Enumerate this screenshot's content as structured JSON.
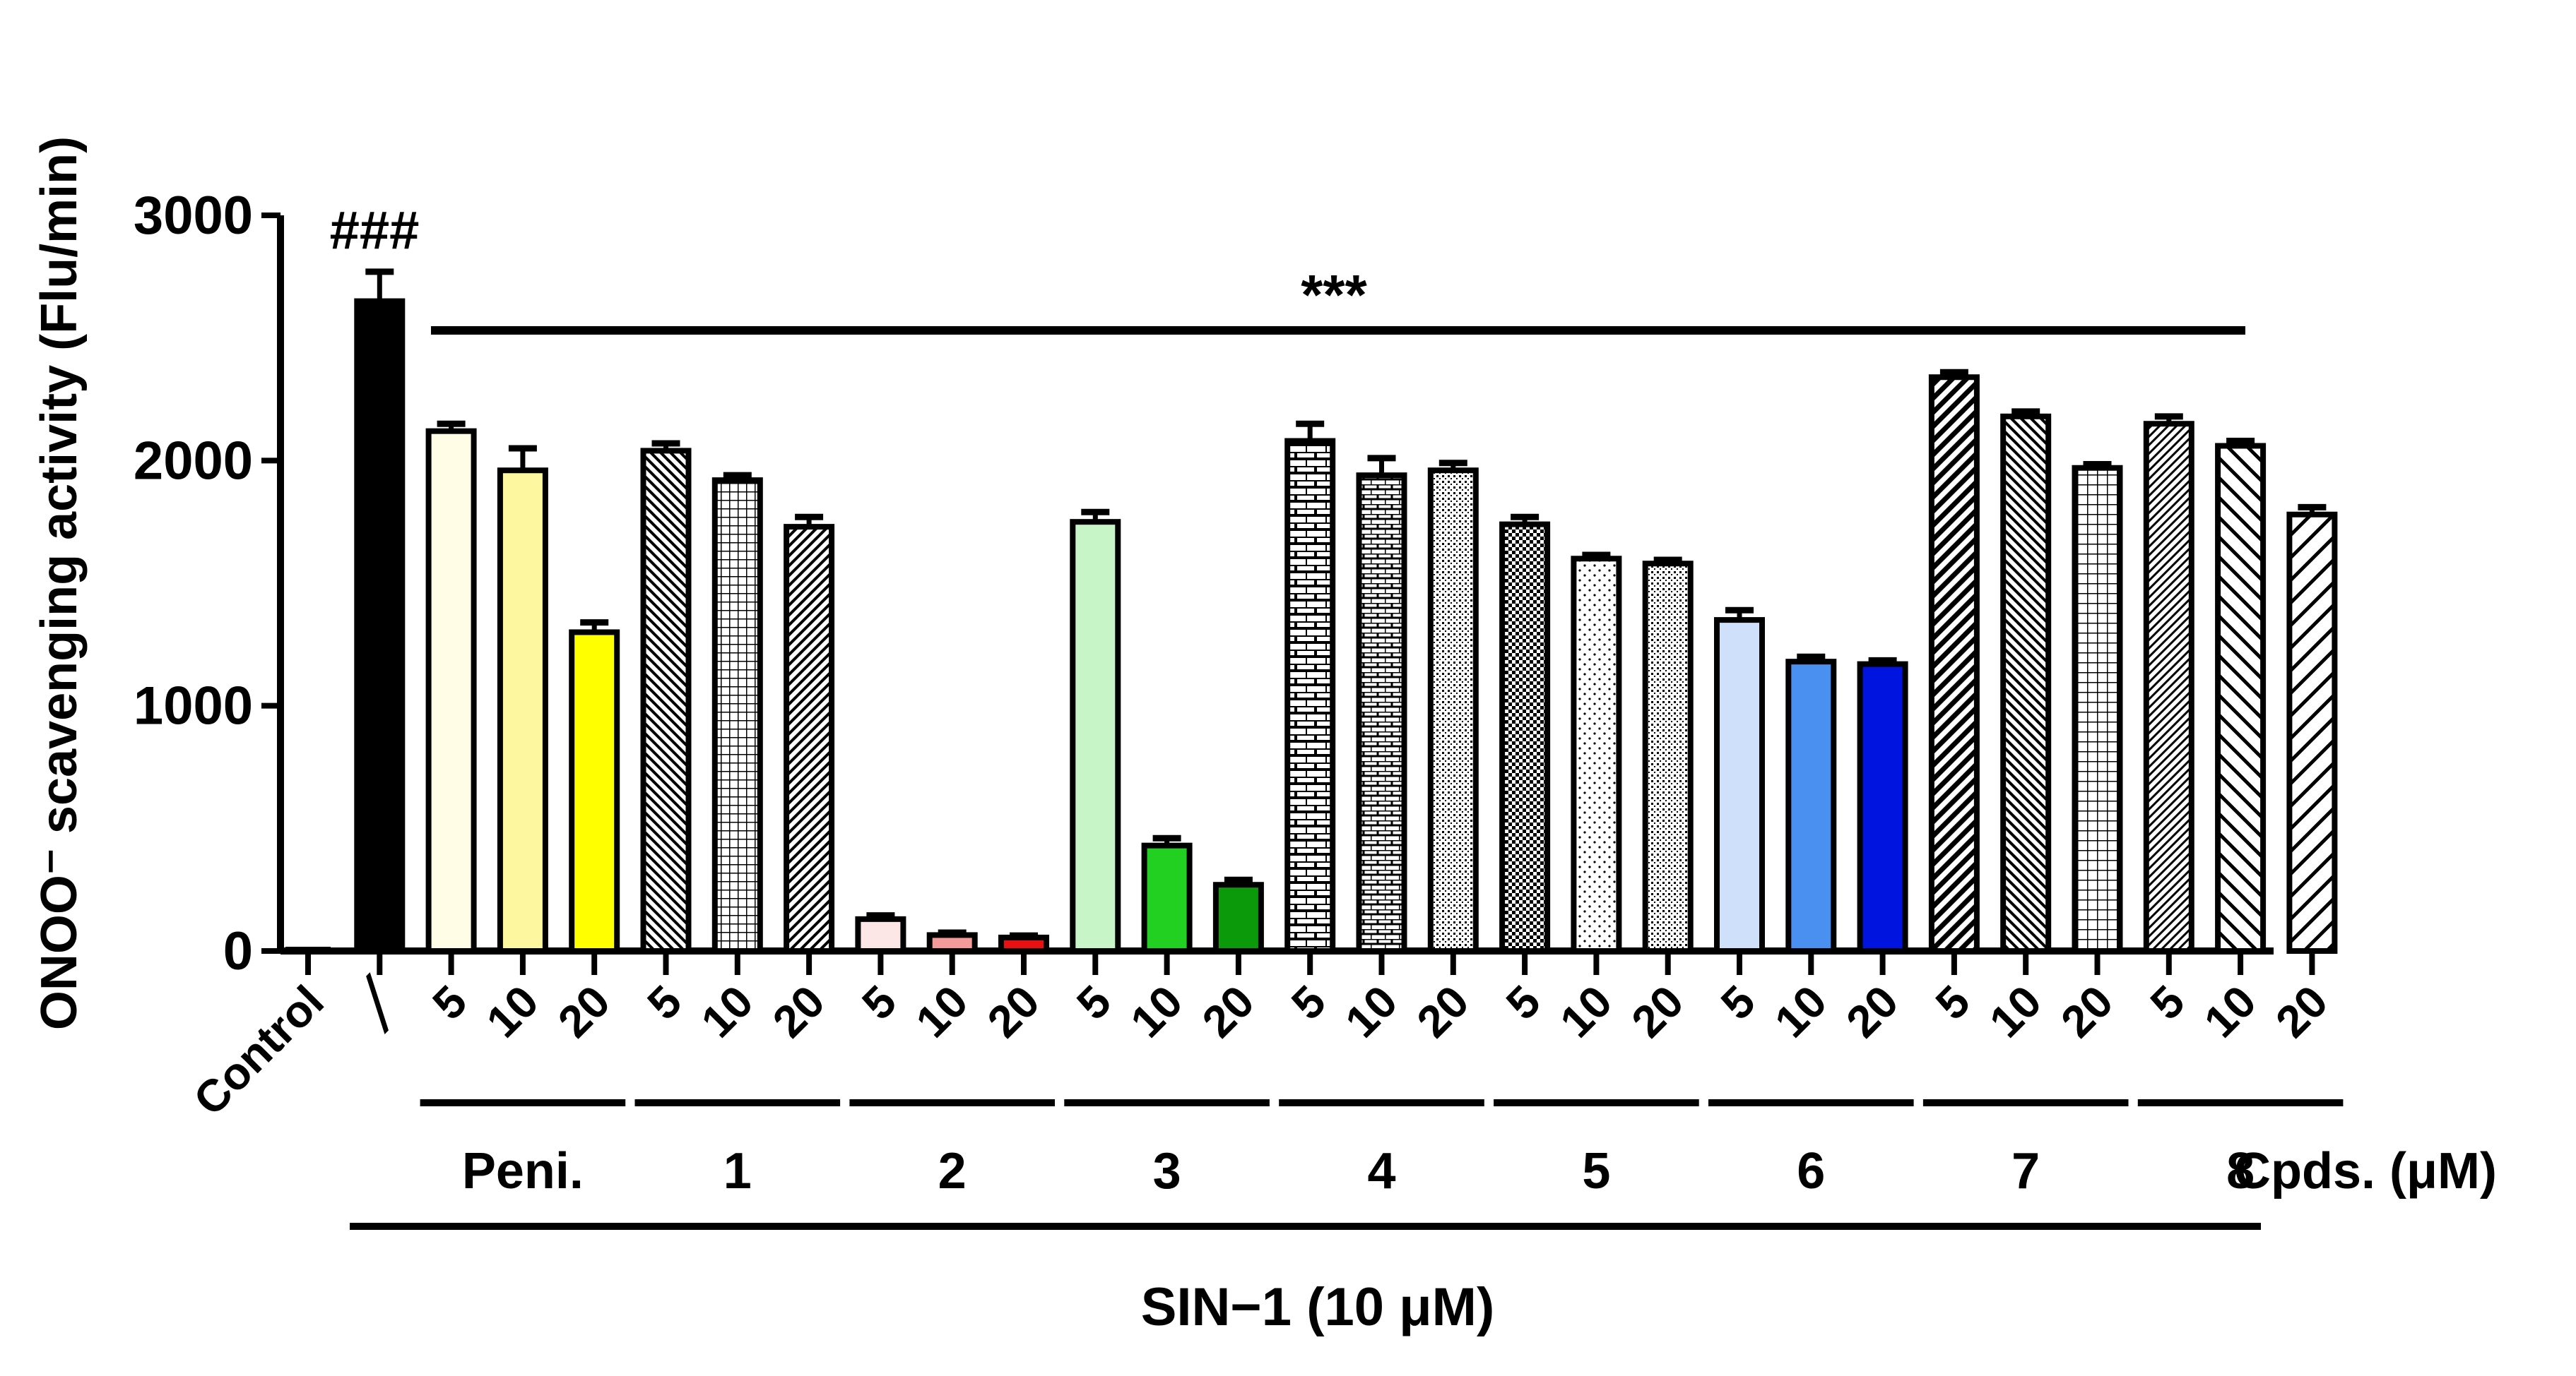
{
  "chart_data": {
    "type": "bar",
    "title": "",
    "ylabel": "ONOO⁻ scavenging activity (Flu/min)",
    "xlabel": "SIN−1 (10 μM)",
    "ylim": [
      0,
      3000
    ],
    "yticks": [
      "0",
      "1000",
      "2000",
      "3000"
    ],
    "compound_axis_label": "Cpds. (μM)",
    "significance": {
      "control_vs_sin1": "###",
      "sin1_vs_treatments": "***"
    },
    "bars": [
      {
        "label": "Control",
        "value": 0,
        "error": 0,
        "fill": "#000000",
        "pattern": "solid"
      },
      {
        "label": "╱",
        "value": 2650,
        "error": 120,
        "fill": "#000000",
        "pattern": "solid"
      },
      {
        "label": "5",
        "value": 2120,
        "error": 30,
        "fill": "#fffde6",
        "pattern": "solid"
      },
      {
        "label": "10",
        "value": 1960,
        "error": 90,
        "fill": "#fdf7a0",
        "pattern": "solid"
      },
      {
        "label": "20",
        "value": 1300,
        "error": 40,
        "fill": "#ffff00",
        "pattern": "solid"
      },
      {
        "label": "5",
        "value": 2040,
        "error": 30,
        "fill": "#ffffff",
        "pattern": "diag-back-dense"
      },
      {
        "label": "10",
        "value": 1920,
        "error": 20,
        "fill": "#ffffff",
        "pattern": "grid-small"
      },
      {
        "label": "20",
        "value": 1730,
        "error": 40,
        "fill": "#ffffff",
        "pattern": "diag-dense"
      },
      {
        "label": "5",
        "value": 130,
        "error": 15,
        "fill": "#fde6e6",
        "pattern": "solid"
      },
      {
        "label": "10",
        "value": 65,
        "error": 10,
        "fill": "#f49a9a",
        "pattern": "solid"
      },
      {
        "label": "20",
        "value": 55,
        "error": 8,
        "fill": "#e81010",
        "pattern": "solid"
      },
      {
        "label": "5",
        "value": 1750,
        "error": 40,
        "fill": "#c8f5c8",
        "pattern": "solid"
      },
      {
        "label": "10",
        "value": 430,
        "error": 30,
        "fill": "#22d022",
        "pattern": "solid"
      },
      {
        "label": "20",
        "value": 270,
        "error": 20,
        "fill": "#0a9a0a",
        "pattern": "solid"
      },
      {
        "label": "5",
        "value": 2080,
        "error": 70,
        "fill": "#ffffff",
        "pattern": "brick"
      },
      {
        "label": "10",
        "value": 1940,
        "error": 70,
        "fill": "#ffffff",
        "pattern": "brick-small"
      },
      {
        "label": "20",
        "value": 1960,
        "error": 30,
        "fill": "#ffffff",
        "pattern": "dots-dense"
      },
      {
        "label": "5",
        "value": 1740,
        "error": 30,
        "fill": "#ffffff",
        "pattern": "checker"
      },
      {
        "label": "10",
        "value": 1600,
        "error": 15,
        "fill": "#ffffff",
        "pattern": "dots-sparse"
      },
      {
        "label": "20",
        "value": 1580,
        "error": 15,
        "fill": "#ffffff",
        "pattern": "dots-dense"
      },
      {
        "label": "5",
        "value": 1350,
        "error": 40,
        "fill": "#cfe0fa",
        "pattern": "solid"
      },
      {
        "label": "10",
        "value": 1180,
        "error": 20,
        "fill": "#4a90f0",
        "pattern": "solid"
      },
      {
        "label": "20",
        "value": 1170,
        "error": 15,
        "fill": "#0014e0",
        "pattern": "solid"
      },
      {
        "label": "5",
        "value": 2340,
        "error": 20,
        "fill": "#ffffff",
        "pattern": "diag-thick"
      },
      {
        "label": "10",
        "value": 2180,
        "error": 20,
        "fill": "#ffffff",
        "pattern": "diag-back-dense"
      },
      {
        "label": "20",
        "value": 1970,
        "error": 15,
        "fill": "#ffffff",
        "pattern": "grid"
      },
      {
        "label": "5",
        "value": 2150,
        "error": 30,
        "fill": "#ffffff",
        "pattern": "diag-fine"
      },
      {
        "label": "10",
        "value": 2060,
        "error": 20,
        "fill": "#ffffff",
        "pattern": "diag-back-wide"
      },
      {
        "label": "20",
        "value": 1780,
        "error": 30,
        "fill": "#ffffff",
        "pattern": "diag-wide"
      }
    ],
    "groups": [
      {
        "label": "Peni.",
        "first_bar": 2,
        "last_bar": 4
      },
      {
        "label": "1",
        "first_bar": 5,
        "last_bar": 7
      },
      {
        "label": "2",
        "first_bar": 8,
        "last_bar": 10
      },
      {
        "label": "3",
        "first_bar": 11,
        "last_bar": 13
      },
      {
        "label": "4",
        "first_bar": 14,
        "last_bar": 16
      },
      {
        "label": "5",
        "first_bar": 17,
        "last_bar": 19
      },
      {
        "label": "6",
        "first_bar": 20,
        "last_bar": 22
      },
      {
        "label": "7",
        "first_bar": 23,
        "last_bar": 25
      },
      {
        "label": "8",
        "first_bar": 26,
        "last_bar": 28
      }
    ]
  }
}
